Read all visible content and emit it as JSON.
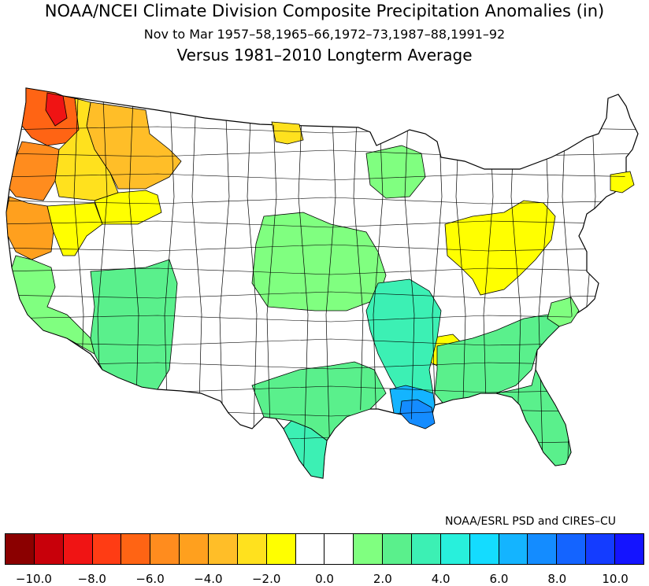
{
  "title": "NOAA/NCEI Climate Division Composite Precipitation Anomalies (in)",
  "subtitle": "Nov to Mar  1957–58,1965–66,1972–73,1987–88,1991–92",
  "comparison": "Versus 1981–2010 Longterm Average",
  "credit": "NOAA/ESRL PSD and CIRES–CU",
  "colors": {
    "boundary": "#000000",
    "no_change": "#ffffff"
  },
  "colorbar": {
    "bins": [
      "#8b0000",
      "#c8000a",
      "#f01414",
      "#ff3c14",
      "#ff6414",
      "#ff8c1e",
      "#ffa01e",
      "#ffbe28",
      "#ffe11e",
      "#ffff00",
      "#ffffff",
      "#ffffff",
      "#80ff80",
      "#5af08c",
      "#3cf0b4",
      "#28f0dc",
      "#14dcff",
      "#14b4ff",
      "#148cff",
      "#1464ff",
      "#143cff",
      "#1414ff"
    ],
    "tick_labels": [
      "−10.0",
      "−8.0",
      "−6.0",
      "−4.0",
      "−2.0",
      "0.0",
      "2.0",
      "4.0",
      "6.0",
      "8.0",
      "10.0"
    ]
  },
  "regions": [
    {
      "name": "western-washington",
      "anomaly": -6.5,
      "color": "#ff6414"
    },
    {
      "name": "olympic-coast",
      "anomaly": -8.0,
      "color": "#f01414"
    },
    {
      "name": "western-oregon",
      "anomaly": -5.0,
      "color": "#ff8c1e"
    },
    {
      "name": "northern-california-coast",
      "anomaly": -4.0,
      "color": "#ffa01e"
    },
    {
      "name": "northern-idaho",
      "anomaly": -3.5,
      "color": "#ffbe28"
    },
    {
      "name": "inland-northwest",
      "anomaly": -2.0,
      "color": "#ffe11e"
    },
    {
      "name": "eastern-oregon",
      "anomaly": -1.5,
      "color": "#ffff00"
    },
    {
      "name": "northwest-nevada",
      "anomaly": -1.5,
      "color": "#ffff00"
    },
    {
      "name": "northern-minnesota",
      "anomaly": -1.5,
      "color": "#ffe11e"
    },
    {
      "name": "pennsylvania-ohio-valley",
      "anomaly": -1.5,
      "color": "#ffff00"
    },
    {
      "name": "massachusetts",
      "anomaly": -1.5,
      "color": "#ffff00"
    },
    {
      "name": "north-alabama",
      "anomaly": -1.5,
      "color": "#ffff00"
    },
    {
      "name": "southern-california",
      "anomaly": 1.5,
      "color": "#80ff80"
    },
    {
      "name": "arizona",
      "anomaly": 2.5,
      "color": "#5af08c"
    },
    {
      "name": "central-plains",
      "anomaly": 1.5,
      "color": "#80ff80"
    },
    {
      "name": "wisconsin",
      "anomaly": 1.5,
      "color": "#80ff80"
    },
    {
      "name": "lower-mississippi-valley",
      "anomaly": 3.0,
      "color": "#3cf0b4"
    },
    {
      "name": "texas",
      "anomaly": 2.5,
      "color": "#5af08c"
    },
    {
      "name": "south-texas",
      "anomaly": 3.5,
      "color": "#3cf0b4"
    },
    {
      "name": "southeast",
      "anomaly": 2.0,
      "color": "#5af08c"
    },
    {
      "name": "florida",
      "anomaly": 2.0,
      "color": "#5af08c"
    },
    {
      "name": "louisiana-coast",
      "anomaly": 5.5,
      "color": "#14b4ff"
    },
    {
      "name": "southern-louisiana",
      "anomaly": 7.0,
      "color": "#148cff"
    },
    {
      "name": "carolina-coast",
      "anomaly": 1.5,
      "color": "#80ff80"
    }
  ]
}
